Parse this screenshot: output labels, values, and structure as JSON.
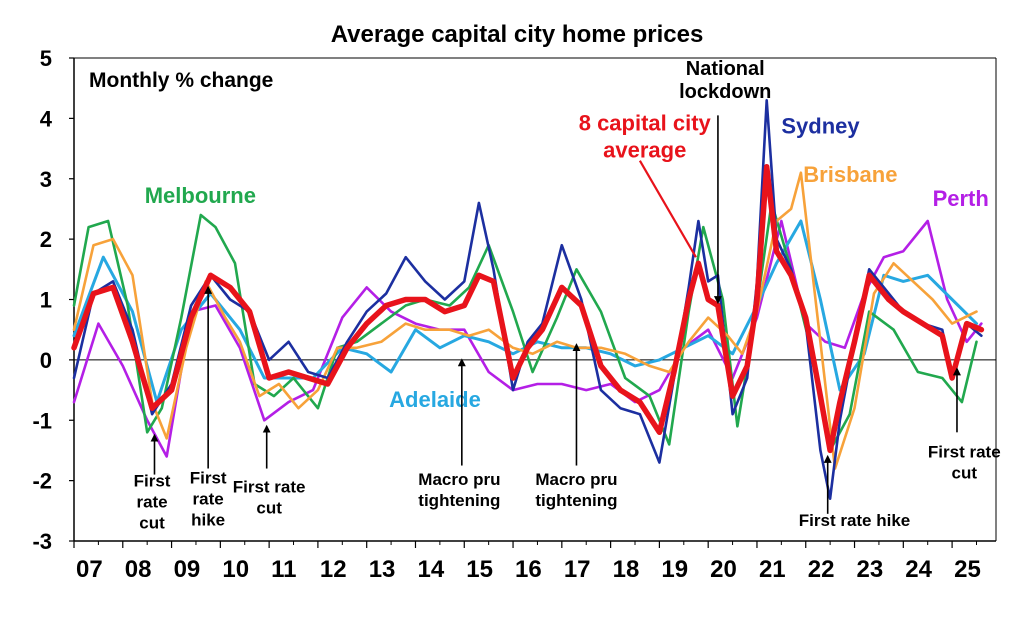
{
  "chart_data": {
    "type": "line",
    "title": "Average capital city home prices",
    "ylabel": "Monthly % change",
    "xlabel": "",
    "xlim": [
      2007.0,
      2025.9
    ],
    "ylim": [
      -3,
      5
    ],
    "yticks": [
      -3,
      -2,
      -1,
      0,
      1,
      2,
      3,
      4,
      5
    ],
    "xtick_labels": [
      {
        "x": 2007,
        "label": "07"
      },
      {
        "x": 2008,
        "label": "08"
      },
      {
        "x": 2009,
        "label": "09"
      },
      {
        "x": 2010,
        "label": "10"
      },
      {
        "x": 2011,
        "label": "11"
      },
      {
        "x": 2012,
        "label": "12"
      },
      {
        "x": 2013,
        "label": "13"
      },
      {
        "x": 2014,
        "label": "14"
      },
      {
        "x": 2015,
        "label": "15"
      },
      {
        "x": 2016,
        "label": "16"
      },
      {
        "x": 2017,
        "label": "17"
      },
      {
        "x": 2018,
        "label": "18"
      },
      {
        "x": 2019,
        "label": "19"
      },
      {
        "x": 2020,
        "label": "20"
      },
      {
        "x": 2021,
        "label": "21"
      },
      {
        "x": 2022,
        "label": "22"
      },
      {
        "x": 2023,
        "label": "23"
      },
      {
        "x": 2024,
        "label": "24"
      },
      {
        "x": 2025,
        "label": "25"
      }
    ],
    "series": [
      {
        "name": "Perth",
        "color": "#b41fe6",
        "width": 2.6,
        "label_lines": [
          "Perth"
        ],
        "label_x": 2024.6,
        "label_y": 2.55,
        "anchor": "start",
        "x": [
          2007.0,
          2007.5,
          2008.0,
          2008.5,
          2008.9,
          2009.4,
          2009.9,
          2010.4,
          2010.9,
          2011.4,
          2011.9,
          2012.5,
          2013.0,
          2013.5,
          2014.0,
          2014.5,
          2015.0,
          2015.5,
          2016.0,
          2016.5,
          2017.0,
          2017.5,
          2018.0,
          2018.5,
          2019.0,
          2019.5,
          2020.0,
          2020.5,
          2021.0,
          2021.5,
          2022.0,
          2022.4,
          2022.8,
          2023.2,
          2023.6,
          2024.0,
          2024.5,
          2024.9,
          2025.3,
          2025.6
        ],
        "y": [
          -0.7,
          0.6,
          -0.1,
          -1.0,
          -1.6,
          0.8,
          0.9,
          0.2,
          -1.0,
          -0.7,
          -0.5,
          0.7,
          1.2,
          0.8,
          0.6,
          0.5,
          0.5,
          -0.2,
          -0.5,
          -0.4,
          -0.4,
          -0.5,
          -0.4,
          -0.7,
          -0.5,
          0.2,
          0.5,
          -0.3,
          0.7,
          2.3,
          0.6,
          0.3,
          0.2,
          1.1,
          1.7,
          1.8,
          2.3,
          1.0,
          0.3,
          0.6
        ]
      },
      {
        "name": "Adelaide",
        "color": "#27a8e1",
        "width": 3.0,
        "label_lines": [
          "Adelaide"
        ],
        "label_x": 2014.4,
        "label_y": -0.78,
        "anchor": "middle",
        "x": [
          2007.0,
          2007.6,
          2008.2,
          2008.7,
          2009.2,
          2009.8,
          2010.4,
          2010.9,
          2011.4,
          2011.9,
          2012.5,
          2013.0,
          2013.5,
          2014.0,
          2014.5,
          2015.0,
          2015.5,
          2016.0,
          2016.5,
          2017.0,
          2017.5,
          2018.0,
          2018.5,
          2019.0,
          2019.5,
          2020.0,
          2020.5,
          2021.0,
          2021.4,
          2021.9,
          2022.3,
          2022.7,
          2023.2,
          2023.6,
          2024.0,
          2024.5,
          2025.0,
          2025.5
        ],
        "y": [
          0.4,
          1.7,
          0.8,
          -0.7,
          0.5,
          1.1,
          0.5,
          -0.3,
          -0.3,
          -0.3,
          0.2,
          0.1,
          -0.2,
          0.5,
          0.2,
          0.4,
          0.3,
          0.1,
          0.3,
          0.2,
          0.2,
          0.1,
          -0.1,
          0.0,
          0.2,
          0.4,
          0.1,
          0.9,
          1.6,
          2.3,
          1.0,
          -0.5,
          0.1,
          1.4,
          1.3,
          1.4,
          1.0,
          0.6
        ]
      },
      {
        "name": "Melbourne",
        "color": "#21a84e",
        "width": 2.6,
        "label_lines": [
          "Melbourne"
        ],
        "label_x": 2008.45,
        "label_y": 2.6,
        "anchor": "start",
        "x": [
          2007.0,
          2007.3,
          2007.7,
          2008.1,
          2008.5,
          2008.8,
          2009.2,
          2009.6,
          2009.9,
          2010.3,
          2010.7,
          2011.1,
          2011.5,
          2012.0,
          2012.4,
          2012.8,
          2013.3,
          2013.8,
          2014.2,
          2014.7,
          2015.1,
          2015.5,
          2016.0,
          2016.4,
          2016.9,
          2017.3,
          2017.8,
          2018.3,
          2018.8,
          2019.2,
          2019.6,
          2019.9,
          2020.3,
          2020.6,
          2021.0,
          2021.3,
          2021.7,
          2022.1,
          2022.5,
          2022.9,
          2023.3,
          2023.8,
          2024.3,
          2024.8,
          2025.2,
          2025.5
        ],
        "y": [
          0.9,
          2.2,
          2.3,
          0.9,
          -1.2,
          -0.8,
          0.7,
          2.4,
          2.2,
          1.6,
          -0.4,
          -0.6,
          -0.3,
          -0.8,
          0.2,
          0.3,
          0.6,
          0.9,
          1.0,
          0.9,
          1.2,
          1.9,
          0.8,
          -0.2,
          0.7,
          1.5,
          0.8,
          -0.3,
          -0.6,
          -1.4,
          0.8,
          2.2,
          1.0,
          -1.1,
          0.9,
          2.6,
          1.5,
          0.2,
          -1.5,
          -0.9,
          0.8,
          0.5,
          -0.2,
          -0.3,
          -0.7,
          0.3
        ]
      },
      {
        "name": "Brisbane",
        "color": "#f7a23a",
        "width": 2.6,
        "label_lines": [
          "Brisbane"
        ],
        "label_x": 2021.95,
        "label_y": 2.95,
        "anchor": "start",
        "x": [
          2007.0,
          2007.4,
          2007.8,
          2008.2,
          2008.6,
          2008.9,
          2009.3,
          2009.7,
          2010.1,
          2010.4,
          2010.8,
          2011.2,
          2011.6,
          2012.0,
          2012.4,
          2012.8,
          2013.3,
          2013.8,
          2014.2,
          2014.7,
          2015.1,
          2015.5,
          2016.0,
          2016.4,
          2016.9,
          2017.3,
          2017.8,
          2018.3,
          2018.8,
          2019.2,
          2019.6,
          2020.0,
          2020.4,
          2020.7,
          2021.0,
          2021.4,
          2021.7,
          2021.9,
          2022.2,
          2022.6,
          2023.0,
          2023.4,
          2023.8,
          2024.2,
          2024.6,
          2025.0,
          2025.5
        ],
        "y": [
          0.5,
          1.9,
          2.0,
          1.4,
          -0.7,
          -1.3,
          0.2,
          1.3,
          0.7,
          0.3,
          -0.6,
          -0.4,
          -0.8,
          -0.5,
          0.2,
          0.2,
          0.3,
          0.6,
          0.5,
          0.5,
          0.4,
          0.5,
          0.2,
          0.1,
          0.3,
          0.2,
          0.2,
          0.1,
          -0.1,
          -0.2,
          0.3,
          0.7,
          0.4,
          0.1,
          0.8,
          2.3,
          2.5,
          3.1,
          1.0,
          -1.8,
          -0.8,
          1.1,
          1.6,
          1.3,
          1.0,
          0.6,
          0.8
        ]
      },
      {
        "name": "Sydney",
        "color": "#1c2fa0",
        "width": 2.6,
        "label_lines": [
          "Sydney"
        ],
        "label_x": 2021.5,
        "label_y": 3.75,
        "anchor": "start",
        "x": [
          2007.0,
          2007.4,
          2007.8,
          2008.2,
          2008.6,
          2009.0,
          2009.4,
          2009.8,
          2010.2,
          2010.6,
          2011.0,
          2011.4,
          2011.8,
          2012.2,
          2012.6,
          2013.0,
          2013.4,
          2013.8,
          2014.2,
          2014.6,
          2015.0,
          2015.3,
          2015.6,
          2016.0,
          2016.3,
          2016.6,
          2017.0,
          2017.4,
          2017.8,
          2018.2,
          2018.6,
          2019.0,
          2019.3,
          2019.6,
          2019.8,
          2020.0,
          2020.2,
          2020.5,
          2020.8,
          2021.0,
          2021.2,
          2021.4,
          2021.7,
          2022.0,
          2022.3,
          2022.5,
          2022.7,
          2023.0,
          2023.3,
          2023.7,
          2024.0,
          2024.4,
          2024.8,
          2025.0,
          2025.3,
          2025.6
        ],
        "y": [
          -0.3,
          1.1,
          1.3,
          0.5,
          -0.9,
          -0.4,
          0.9,
          1.4,
          1.0,
          0.8,
          0.0,
          0.3,
          -0.2,
          -0.3,
          0.3,
          0.8,
          1.1,
          1.7,
          1.3,
          1.0,
          1.3,
          2.6,
          1.5,
          -0.5,
          0.3,
          0.6,
          1.9,
          1.0,
          -0.5,
          -0.8,
          -0.9,
          -1.7,
          -0.3,
          1.2,
          2.3,
          1.3,
          1.4,
          -0.9,
          -0.3,
          1.3,
          4.3,
          2.0,
          1.5,
          0.6,
          -1.5,
          -2.3,
          -1.0,
          0.3,
          1.5,
          1.1,
          0.8,
          0.6,
          0.5,
          -0.3,
          0.6,
          0.4
        ]
      },
      {
        "name": "8 capital city average",
        "color": "#e8131b",
        "width": 5.5,
        "label_lines": [
          "8 capital city",
          "average"
        ],
        "label_x": 2018.7,
        "label_y": 3.8,
        "anchor": "middle",
        "x": [
          2007.0,
          2007.4,
          2007.8,
          2008.2,
          2008.6,
          2009.0,
          2009.4,
          2009.8,
          2010.2,
          2010.6,
          2011.0,
          2011.4,
          2011.8,
          2012.2,
          2012.6,
          2013.0,
          2013.4,
          2013.8,
          2014.2,
          2014.6,
          2015.0,
          2015.3,
          2015.6,
          2016.0,
          2016.3,
          2016.6,
          2017.0,
          2017.4,
          2017.8,
          2018.2,
          2018.6,
          2019.0,
          2019.3,
          2019.6,
          2019.8,
          2020.0,
          2020.2,
          2020.5,
          2020.8,
          2021.0,
          2021.2,
          2021.4,
          2021.7,
          2022.0,
          2022.3,
          2022.5,
          2022.7,
          2023.0,
          2023.3,
          2023.7,
          2024.0,
          2024.4,
          2024.8,
          2025.0,
          2025.3,
          2025.6
        ],
        "y": [
          0.2,
          1.1,
          1.2,
          0.3,
          -0.8,
          -0.5,
          0.7,
          1.4,
          1.2,
          0.8,
          -0.3,
          -0.2,
          -0.3,
          -0.4,
          0.2,
          0.6,
          0.9,
          1.0,
          1.0,
          0.8,
          0.9,
          1.4,
          1.3,
          -0.3,
          0.2,
          0.5,
          1.2,
          0.9,
          -0.1,
          -0.5,
          -0.7,
          -1.2,
          -0.2,
          1.0,
          1.6,
          1.0,
          0.9,
          -0.6,
          -0.1,
          1.0,
          3.2,
          1.8,
          1.4,
          0.7,
          -0.6,
          -1.5,
          -0.7,
          0.3,
          1.4,
          1.0,
          0.8,
          0.6,
          0.4,
          -0.3,
          0.6,
          0.5
        ]
      }
    ],
    "annotations": [
      {
        "lines": [
          "National",
          "lockdown"
        ],
        "text_x": 2020.35,
        "text_y": 4.72,
        "arrow_x": 2020.2,
        "arrow_from": 4.05,
        "arrow_to": 0.95
      },
      {
        "lines": [
          "First",
          "rate",
          "cut"
        ],
        "text_x": 2008.6,
        "text_y": -2.1,
        "arrow_x": 2008.65,
        "arrow_from": -1.9,
        "arrow_to": -1.25
      },
      {
        "lines": [
          "First",
          "rate",
          "hike"
        ],
        "text_x": 2009.75,
        "text_y": -2.05,
        "arrow_x": 2009.75,
        "arrow_from": -1.8,
        "arrow_to": 1.2
      },
      {
        "lines": [
          "First rate",
          "cut"
        ],
        "text_x": 2011.0,
        "text_y": -2.2,
        "arrow_x": 2010.95,
        "arrow_from": -1.8,
        "arrow_to": -1.1
      },
      {
        "lines": [
          "Macro pru",
          "tightening"
        ],
        "text_x": 2014.9,
        "text_y": -2.07,
        "arrow_x": 2014.95,
        "arrow_from": -1.75,
        "arrow_to": 0.0
      },
      {
        "lines": [
          "Macro pru",
          "tightening"
        ],
        "text_x": 2017.3,
        "text_y": -2.07,
        "arrow_x": 2017.3,
        "arrow_from": -1.75,
        "arrow_to": 0.25
      },
      {
        "lines": [
          "First rate hike"
        ],
        "text_x": 2023.0,
        "text_y": -2.75,
        "arrow_x": 2022.45,
        "arrow_from": -2.55,
        "arrow_to": -1.6
      },
      {
        "lines": [
          "First rate",
          "cut"
        ],
        "text_x": 2025.25,
        "text_y": -1.62,
        "arrow_x": 2025.1,
        "arrow_from": -1.2,
        "arrow_to": -0.15
      }
    ]
  }
}
